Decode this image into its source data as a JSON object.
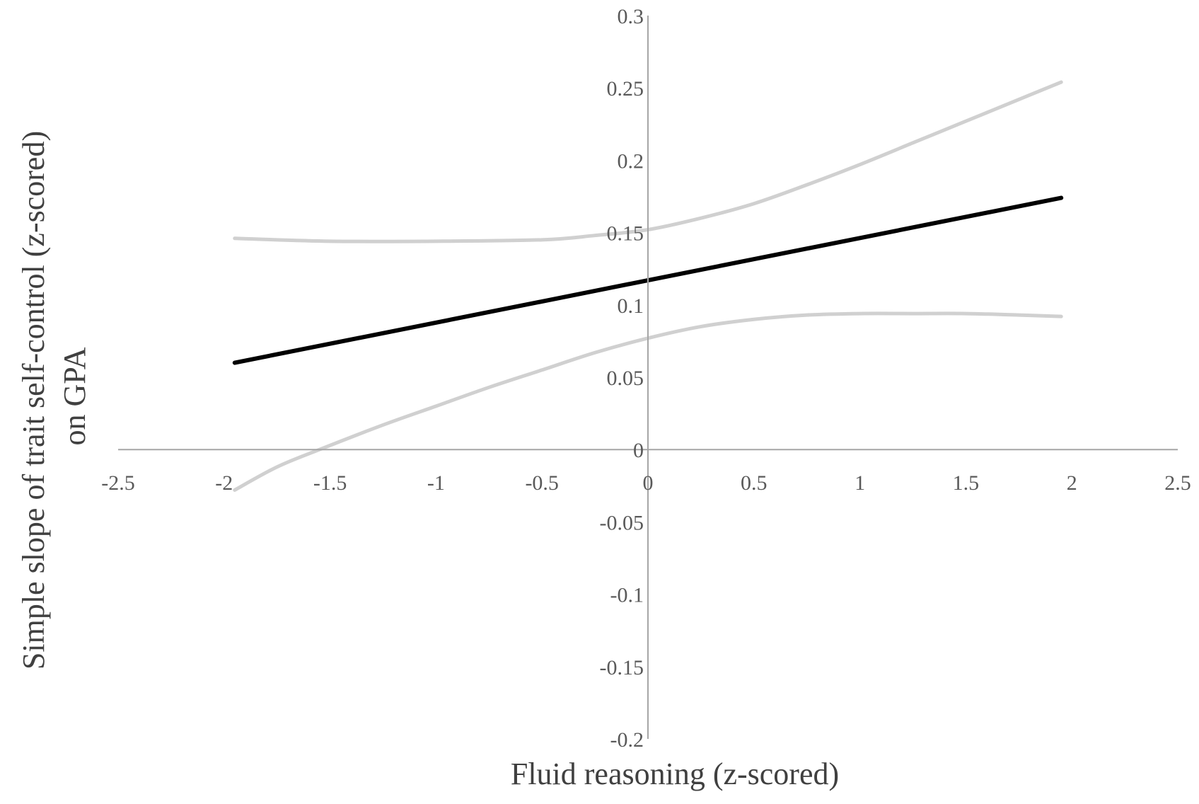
{
  "chart_data": {
    "type": "line",
    "title": "",
    "xlabel": "Fluid reasoning (z-scored)",
    "ylabel_lines": [
      "Simple slope of trait self-control (z-scored)",
      "on GPA"
    ],
    "xlim": [
      -2.5,
      2.5
    ],
    "ylim": [
      -0.2,
      0.3
    ],
    "x_ticks": [
      -2.5,
      -2,
      -1.5,
      -1,
      -0.5,
      0,
      0.5,
      1,
      1.5,
      2,
      2.5
    ],
    "x_tick_labels": [
      "-2.5",
      "-2",
      "-1.5",
      "-1",
      "-0.5",
      "0",
      "0.5",
      "1",
      "1.5",
      "2",
      "2.5"
    ],
    "y_ticks": [
      -0.2,
      -0.15,
      -0.1,
      -0.05,
      0,
      0.05,
      0.1,
      0.15,
      0.2,
      0.25,
      0.3
    ],
    "y_tick_labels": [
      "-0.2",
      "-0.15",
      "-0.1",
      "-0.05",
      "0",
      "0.05",
      "0.1",
      "0.15",
      "0.2",
      "0.25",
      "0.3"
    ],
    "grid": false,
    "legend": "none",
    "colors": {
      "axis": "#a6a6a6",
      "slope": "#000000",
      "confidence_band": "#d0d0d0"
    },
    "series": [
      {
        "role": "upper-bound",
        "x": [
          -1.95,
          -1.5,
          -1.0,
          -0.5,
          -0.25,
          0.0,
          0.25,
          0.5,
          0.75,
          1.0,
          1.25,
          1.5,
          1.75,
          1.95
        ],
        "y": [
          0.146,
          0.144,
          0.144,
          0.145,
          0.148,
          0.152,
          0.16,
          0.17,
          0.183,
          0.197,
          0.212,
          0.227,
          0.242,
          0.254
        ]
      },
      {
        "role": "simple-slope",
        "x": [
          -1.95,
          1.95
        ],
        "y": [
          0.06,
          0.174
        ]
      },
      {
        "role": "lower-bound",
        "x": [
          -1.95,
          -1.75,
          -1.55,
          -1.25,
          -1.0,
          -0.75,
          -0.5,
          -0.25,
          0.0,
          0.25,
          0.5,
          0.75,
          1.0,
          1.25,
          1.5,
          1.75,
          1.95
        ],
        "y": [
          -0.028,
          -0.012,
          0.0,
          0.017,
          0.03,
          0.043,
          0.055,
          0.067,
          0.077,
          0.085,
          0.09,
          0.093,
          0.094,
          0.094,
          0.094,
          0.093,
          0.092
        ]
      }
    ]
  }
}
